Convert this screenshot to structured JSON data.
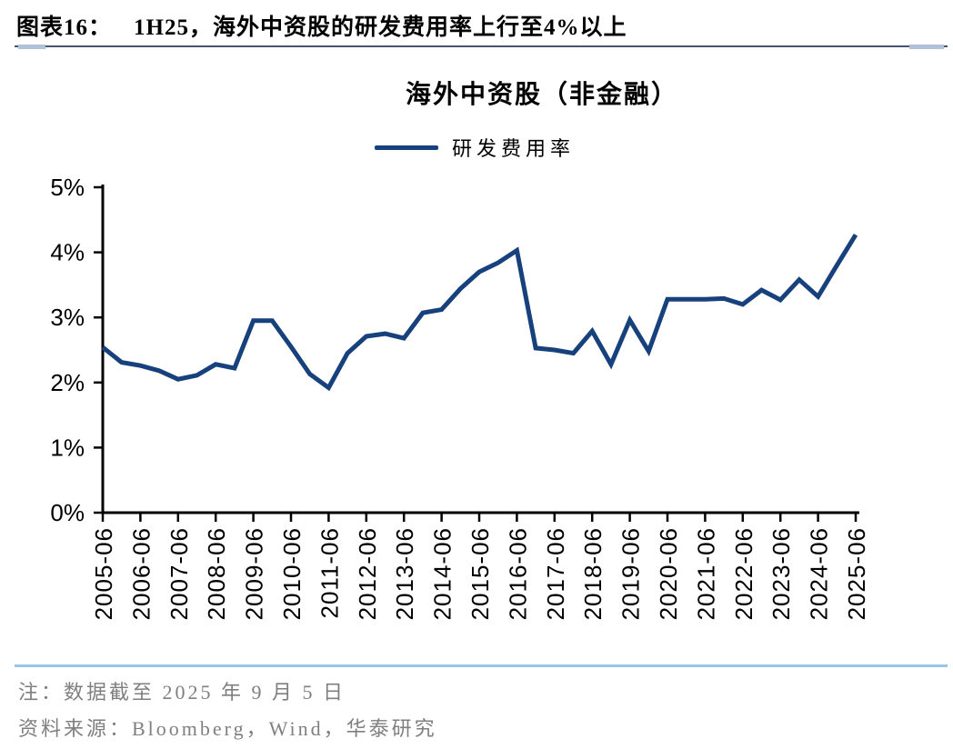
{
  "header": {
    "caption_label": "图表16：",
    "caption_text": "1H25，海外中资股的研发费用率上行至4%以上"
  },
  "chart": {
    "title": "海外中资股（非金融）",
    "legend_label": "研发费用率"
  },
  "chart_data": {
    "type": "line",
    "title": "海外中资股（非金融）",
    "legend": [
      "研发费用率"
    ],
    "legend_position": "top-center",
    "grid": false,
    "x": [
      "2005-06",
      "2005-12",
      "2006-06",
      "2006-12",
      "2007-06",
      "2007-12",
      "2008-06",
      "2008-12",
      "2009-06",
      "2009-12",
      "2010-06",
      "2010-12",
      "2011-06",
      "2011-12",
      "2012-06",
      "2012-12",
      "2013-06",
      "2013-12",
      "2014-06",
      "2014-12",
      "2015-06",
      "2015-12",
      "2016-06",
      "2016-12",
      "2017-06",
      "2017-12",
      "2018-06",
      "2018-12",
      "2019-06",
      "2019-12",
      "2020-06",
      "2020-12",
      "2021-06",
      "2021-12",
      "2022-06",
      "2022-12",
      "2023-06",
      "2023-12",
      "2024-06",
      "2024-12",
      "2025-06"
    ],
    "x_tick_every": 2,
    "series": [
      {
        "name": "研发费用率",
        "values": [
          2.54,
          2.31,
          2.26,
          2.18,
          2.05,
          2.11,
          2.28,
          2.22,
          2.95,
          2.95,
          2.55,
          2.13,
          1.92,
          2.45,
          2.71,
          2.75,
          2.68,
          3.07,
          3.12,
          3.44,
          3.7,
          3.84,
          4.03,
          2.53,
          2.5,
          2.45,
          2.79,
          2.28,
          2.96,
          2.48,
          3.28,
          3.28,
          3.28,
          3.29,
          3.2,
          3.42,
          3.27,
          3.58,
          3.32,
          3.8,
          4.27
        ]
      }
    ],
    "xlabel": "",
    "ylabel": "",
    "ylim": [
      0,
      5
    ],
    "y_ticks": [
      "0%",
      "1%",
      "2%",
      "3%",
      "4%",
      "5%"
    ],
    "line_color": "#17417C",
    "axis_color": "#000000"
  },
  "footer": {
    "note": "注：数据截至 2025 年 9 月 5 日",
    "source": "资料来源：Bloomberg，Wind，华泰研究"
  }
}
